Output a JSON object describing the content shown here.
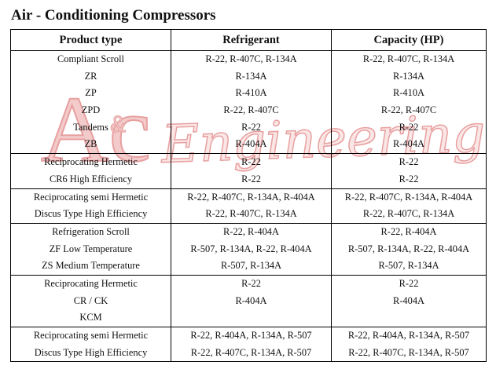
{
  "title": "Air - Conditioning Compressors",
  "watermark": {
    "letters": "Ac",
    "amp": "&",
    "word": "Engineering",
    "color": "#e8a0a0"
  },
  "headers": [
    "Product type",
    "Refrigerant",
    "Capacity (HP)"
  ],
  "groups": [
    {
      "rows": [
        [
          "Compliant Scroll",
          "R-22, R-407C, R-134A",
          "R-22, R-407C, R-134A"
        ],
        [
          "ZR",
          "R-134A",
          "R-134A"
        ],
        [
          "ZP",
          "R-410A",
          "R-410A"
        ],
        [
          "ZPD",
          "R-22, R-407C",
          "R-22, R-407C"
        ],
        [
          "Tandems",
          "R-22",
          "R-22"
        ],
        [
          "ZB",
          "R-404A",
          "R-404A"
        ]
      ]
    },
    {
      "rows": [
        [
          "Reciprocating Hermetic",
          "R-22",
          "R-22"
        ],
        [
          "CR6 High Efficiency",
          "R-22",
          "R-22"
        ]
      ]
    },
    {
      "rows": [
        [
          "Reciprocating semi Hermetic",
          "R-22, R-407C, R-134A, R-404A",
          "R-22, R-407C, R-134A, R-404A"
        ],
        [
          "Discus Type High Efficiency",
          "R-22, R-407C, R-134A",
          "R-22, R-407C, R-134A"
        ]
      ]
    },
    {
      "rows": [
        [
          "Refrigeration Scroll",
          "R-22, R-404A",
          "R-22, R-404A"
        ],
        [
          "ZF Low Temperature",
          "R-507, R-134A, R-22, R-404A",
          "R-507, R-134A, R-22, R-404A"
        ],
        [
          "ZS Medium Temperature",
          "R-507, R-134A",
          "R-507, R-134A"
        ]
      ]
    },
    {
      "rows": [
        [
          "Reciprocating Hermetic",
          "R-22",
          "R-22"
        ],
        [
          "CR / CK",
          "R-404A",
          "R-404A"
        ],
        [
          "KCM",
          "",
          ""
        ]
      ]
    },
    {
      "rows": [
        [
          "Reciprocating semi Hermetic",
          "R-22, R-404A, R-134A, R-507",
          "R-22, R-404A, R-134A, R-507"
        ],
        [
          "Discus Type High Efficiency",
          "R-22, R-407C, R-134A, R-507",
          "R-22, R-407C, R-134A, R-507"
        ]
      ]
    }
  ]
}
